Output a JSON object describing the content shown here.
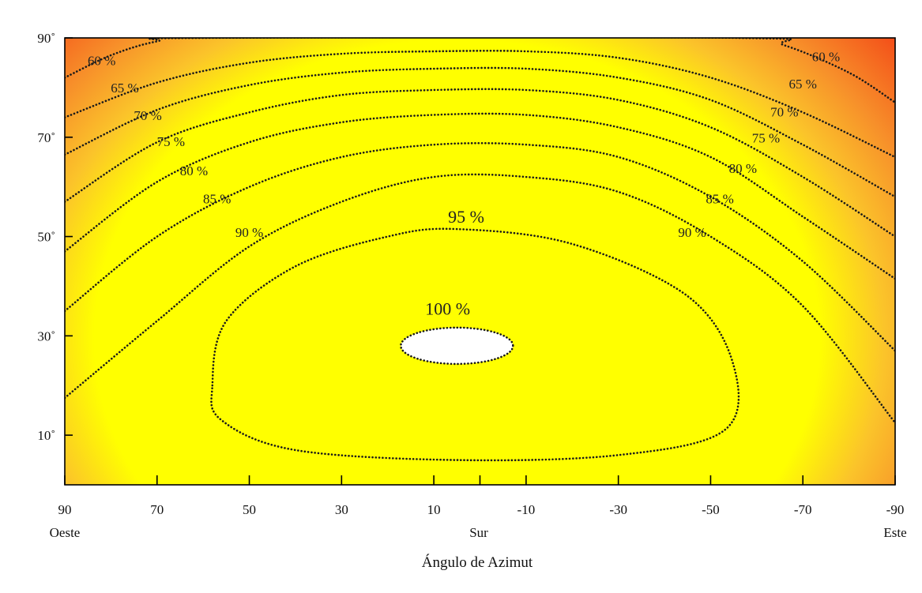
{
  "chart_data": {
    "type": "heatmap",
    "title": "",
    "xlabel": "Ángulo de Azimut",
    "ylabel": "",
    "x_ticks": [
      "90",
      "70",
      "50",
      "30",
      "10",
      "-10",
      "-30",
      "-50",
      "-70",
      "-90"
    ],
    "y_ticks": [
      "10˚",
      "30˚",
      "50˚",
      "70˚",
      "90˚"
    ],
    "x_direction_labels": {
      "left": "Oeste",
      "center": "Sur",
      "right": "Este"
    },
    "xlim": [
      90,
      -90
    ],
    "ylim": [
      0,
      90
    ],
    "colorscale": {
      "high": "#ffff00",
      "low": "#ff0000",
      "peak": "#ffffff"
    },
    "peak": {
      "azimuth": 5,
      "inclination": 28,
      "label": "100 %"
    },
    "contours": [
      {
        "level": 95,
        "label": "95 %",
        "points": [
          [
            58,
            20
          ],
          [
            55,
            33
          ],
          [
            40,
            44
          ],
          [
            20,
            50
          ],
          [
            5,
            51.5
          ],
          [
            -20,
            48.5
          ],
          [
            -45,
            38
          ],
          [
            -55,
            24
          ],
          [
            -53,
            11
          ],
          [
            -30,
            6
          ],
          [
            5,
            5
          ],
          [
            40,
            7
          ],
          [
            56,
            13
          ],
          [
            58,
            20
          ]
        ]
      },
      {
        "level": 90,
        "label": "90 %",
        "points": [
          [
            90,
            17.5
          ],
          [
            70,
            33
          ],
          [
            50,
            48
          ],
          [
            30,
            57
          ],
          [
            10,
            62
          ],
          [
            -10,
            62
          ],
          [
            -30,
            59
          ],
          [
            -50,
            50
          ],
          [
            -70,
            36
          ],
          [
            -90,
            12.5
          ]
        ]
      },
      {
        "level": 85,
        "label": "85 %",
        "points": [
          [
            90,
            35
          ],
          [
            70,
            50
          ],
          [
            50,
            60
          ],
          [
            30,
            66
          ],
          [
            10,
            68.5
          ],
          [
            -10,
            68.5
          ],
          [
            -30,
            66
          ],
          [
            -50,
            58
          ],
          [
            -70,
            45
          ],
          [
            -90,
            27
          ]
        ]
      },
      {
        "level": 80,
        "label": "80 %",
        "points": [
          [
            90,
            47
          ],
          [
            70,
            61
          ],
          [
            50,
            69
          ],
          [
            30,
            73
          ],
          [
            10,
            74.5
          ],
          [
            -10,
            74.5
          ],
          [
            -30,
            72
          ],
          [
            -50,
            66
          ],
          [
            -70,
            54
          ],
          [
            -90,
            41.5
          ]
        ]
      },
      {
        "level": 75,
        "label": "75 %",
        "points": [
          [
            90,
            57
          ],
          [
            70,
            69
          ],
          [
            50,
            75
          ],
          [
            30,
            78.5
          ],
          [
            10,
            79.5
          ],
          [
            -10,
            79.5
          ],
          [
            -30,
            77.5
          ],
          [
            -50,
            72
          ],
          [
            -70,
            62
          ],
          [
            -90,
            50
          ]
        ]
      },
      {
        "level": 70,
        "label": "70 %",
        "points": [
          [
            90,
            66.5
          ],
          [
            70,
            75.5
          ],
          [
            50,
            80.5
          ],
          [
            30,
            83
          ],
          [
            10,
            83.8
          ],
          [
            -10,
            83.8
          ],
          [
            -30,
            82
          ],
          [
            -50,
            77.5
          ],
          [
            -70,
            68.5
          ],
          [
            -90,
            58
          ]
        ]
      },
      {
        "level": 65,
        "label": "65 %",
        "points": [
          [
            90,
            74
          ],
          [
            70,
            81
          ],
          [
            50,
            85
          ],
          [
            30,
            86.8
          ],
          [
            10,
            87.3
          ],
          [
            -10,
            87.3
          ],
          [
            -30,
            86
          ],
          [
            -50,
            82
          ],
          [
            -70,
            75
          ],
          [
            -90,
            66
          ]
        ]
      },
      {
        "level": 60,
        "label": "60 %",
        "points": [
          [
            90,
            82
          ],
          [
            80,
            86.5
          ],
          [
            70,
            89.3
          ],
          [
            60,
            90
          ],
          [
            -56,
            90
          ],
          [
            -66,
            88.5
          ],
          [
            -80,
            83
          ],
          [
            -90,
            77
          ]
        ]
      }
    ],
    "contour_label_positions": [
      {
        "text": "60 %",
        "x": 82,
        "y": 84.5
      },
      {
        "text": "65 %",
        "x": 77,
        "y": 79
      },
      {
        "text": "70 %",
        "x": 72,
        "y": 73.5
      },
      {
        "text": "75 %",
        "x": 67,
        "y": 68.2
      },
      {
        "text": "80 %",
        "x": 62,
        "y": 62.3
      },
      {
        "text": "85 %",
        "x": 57,
        "y": 56.7
      },
      {
        "text": "90 %",
        "x": 50,
        "y": 49.9
      },
      {
        "text": "60 %",
        "x": -75,
        "y": 85.3
      },
      {
        "text": "65 %",
        "x": -70,
        "y": 79.8
      },
      {
        "text": "70 %",
        "x": -66,
        "y": 74.2
      },
      {
        "text": "75 %",
        "x": -62,
        "y": 68.9
      },
      {
        "text": "80 %",
        "x": -57,
        "y": 62.8
      },
      {
        "text": "85 %",
        "x": -52,
        "y": 56.7
      },
      {
        "text": "90 %",
        "x": -46,
        "y": 49.9
      },
      {
        "text": "95 %",
        "x": 3,
        "y": 52.8,
        "big": true
      },
      {
        "text": "100 %",
        "x": 7,
        "y": 34.3,
        "big": true
      }
    ],
    "grid": false,
    "legend": "none"
  }
}
